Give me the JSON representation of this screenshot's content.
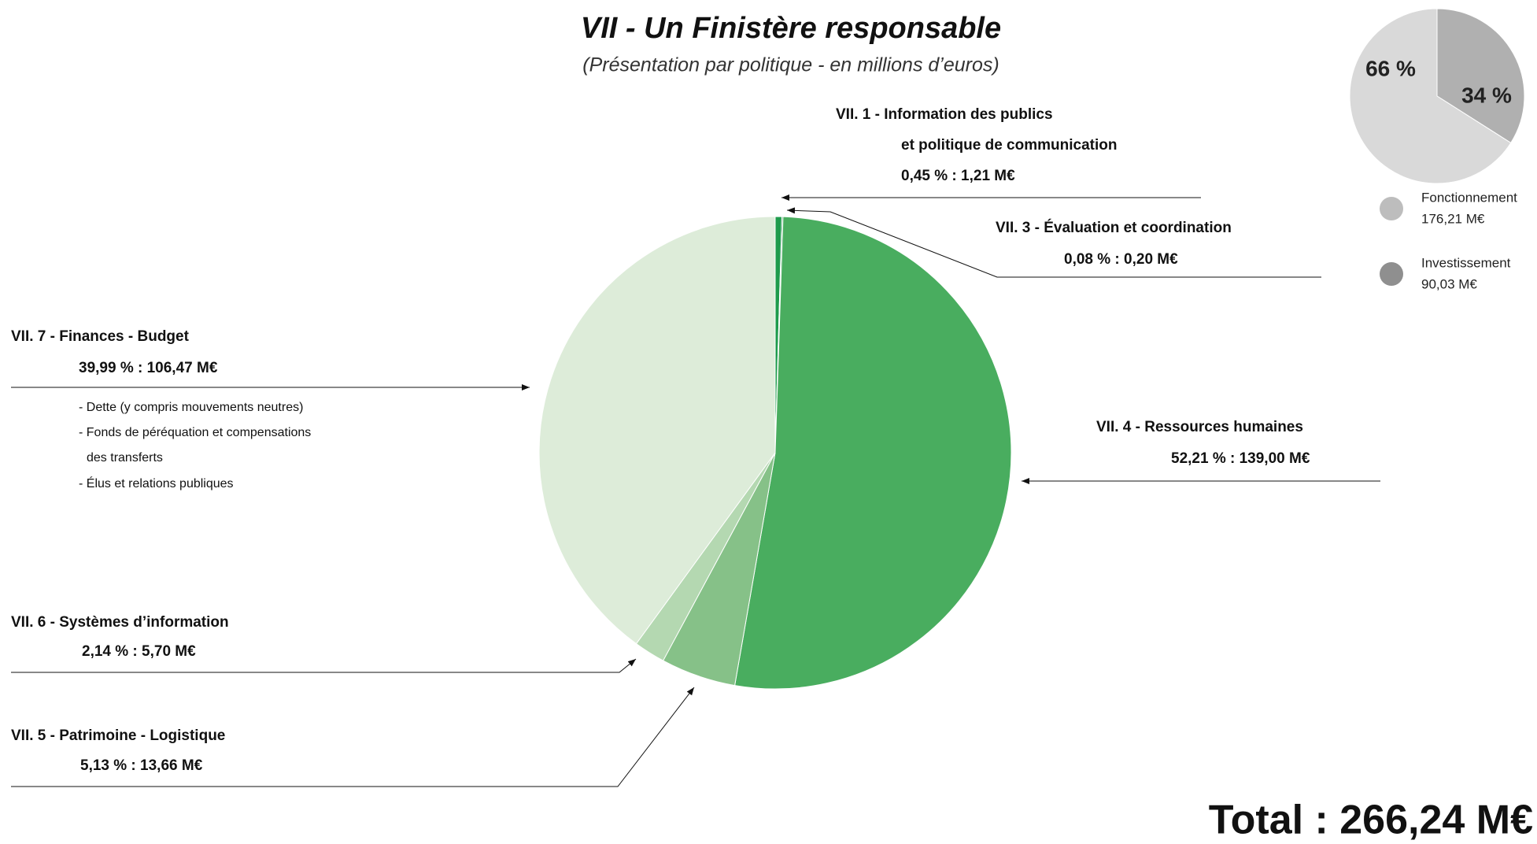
{
  "chart_data": [
    {
      "type": "pie",
      "title": "VII - Un Finistère responsable",
      "subtitle": "(Présentation par politique - en millions d’euros)",
      "categories": [
        [
          "VII. 1 - Information des publics",
          "et politique de communication"
        ],
        [
          "VII. 3 - Évaluation et coordination"
        ],
        [
          "VII.  4 - Ressources humaines"
        ],
        [
          "VII. 5 - Patrimoine - Logistique"
        ],
        [
          "VII. 6 - Systèmes d’information"
        ],
        [
          "VII. 7 - Finances - Budget"
        ]
      ],
      "values": [
        0.45,
        0.08,
        52.21,
        5.13,
        2.14,
        39.99
      ],
      "value_labels": [
        "0,45 % : 1,21 M€",
        "0,08 % : 0,20 M€",
        "52,21 % : 139,00 M€",
        "5,13 % : 13,66 M€",
        "2,14 % : 5,70 M€",
        "39,99 % : 106,47 M€"
      ],
      "colors": [
        "#1e9b4c",
        "#0c7d36",
        "#49ad5f",
        "#86c188",
        "#b4d8b1",
        "#ddecd9"
      ],
      "notes": [
        "- Dette (y compris mouvements neutres)",
        "- Fonds de péréquation et compensations",
        "des transferts",
        "- Élus et relations publiques"
      ],
      "total": "Total : 266,24 M€"
    },
    {
      "type": "pie",
      "categories": [
        "Investissement",
        "Fonctionnement"
      ],
      "values": [
        34,
        66
      ],
      "value_labels": [
        "34 %",
        "66 %"
      ],
      "sublabels": [
        "90,03 M€",
        "176,21 M€"
      ],
      "colors": [
        "#b0b0b0",
        "#d9d9d9"
      ],
      "legend_colors": [
        "#8f8f8f",
        "#bdbdbd"
      ]
    }
  ]
}
